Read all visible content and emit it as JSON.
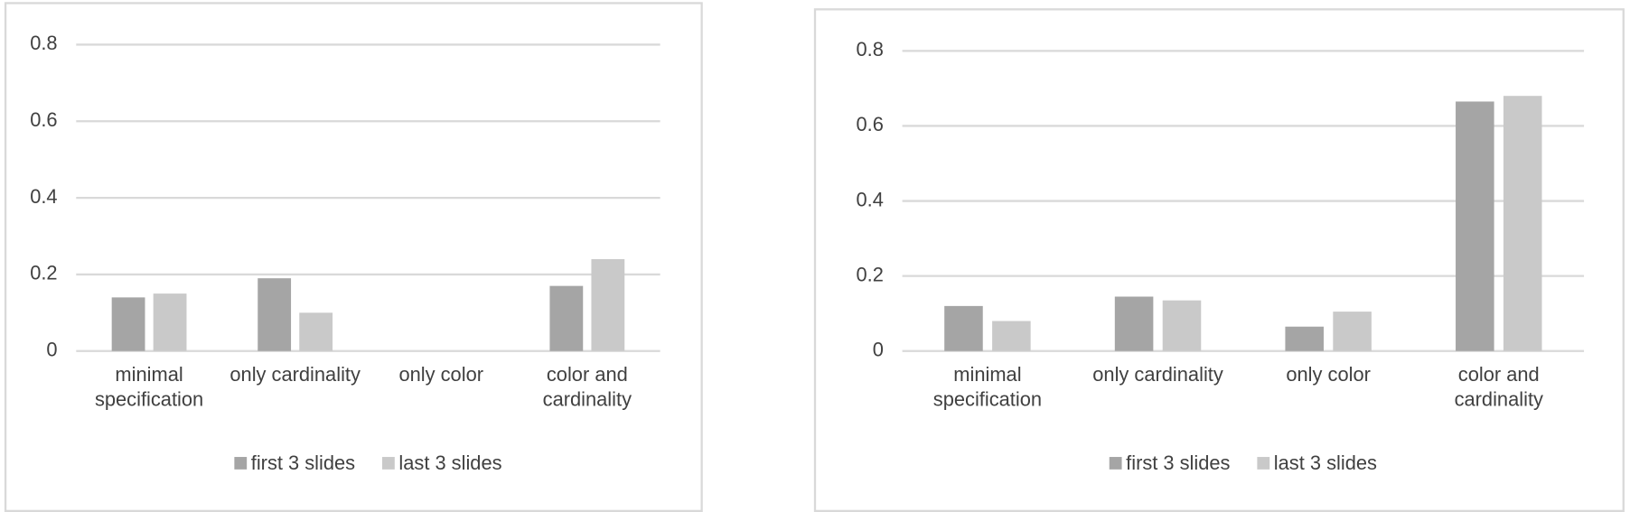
{
  "chart_data": [
    {
      "type": "bar",
      "categories": [
        "minimal specification",
        "only cardinality",
        "only color",
        "color and cardinality"
      ],
      "series": [
        {
          "name": "first 3 slides",
          "color": "#a5a5a5",
          "values": [
            0.14,
            0.19,
            0,
            0.17
          ]
        },
        {
          "name": "last 3 slides",
          "color": "#c9c9c9",
          "values": [
            0.15,
            0.1,
            0,
            0.24
          ]
        }
      ],
      "ylim": [
        0,
        0.8
      ],
      "yticks": [
        0,
        0.2,
        0.4,
        0.6,
        0.8
      ],
      "grid": true,
      "legend": "bottom"
    },
    {
      "type": "bar",
      "categories": [
        "minimal specification",
        "only cardinality",
        "only color",
        "color and cardinality"
      ],
      "series": [
        {
          "name": "first 3 slides",
          "color": "#a5a5a5",
          "values": [
            0.12,
            0.145,
            0.065,
            0.665
          ]
        },
        {
          "name": "last 3 slides",
          "color": "#c9c9c9",
          "values": [
            0.08,
            0.135,
            0.105,
            0.68
          ]
        }
      ],
      "ylim": [
        0,
        0.8
      ],
      "yticks": [
        0,
        0.2,
        0.4,
        0.6,
        0.8
      ],
      "grid": true,
      "legend": "bottom"
    }
  ]
}
